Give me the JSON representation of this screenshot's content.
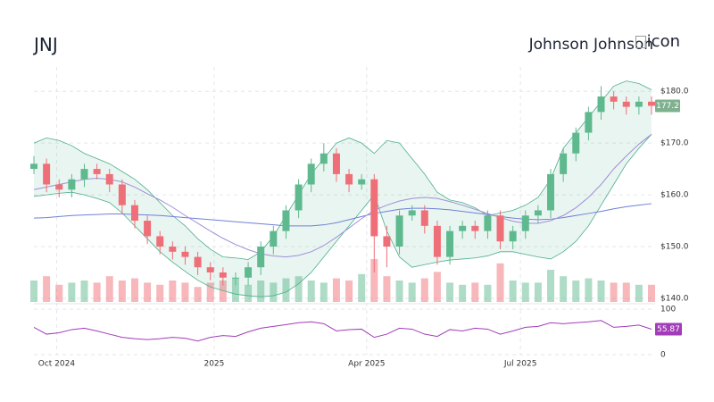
{
  "header": {
    "symbol": "JNJ",
    "company": "Johnson Johnson",
    "logo_alt": "icon"
  },
  "chart_data": {
    "type": "candlestick",
    "xlim": [
      0,
      49
    ],
    "xticks": [
      {
        "value": 1.8,
        "label": "Oct 2024"
      },
      {
        "value": 14.3,
        "label": "2025"
      },
      {
        "value": 26.4,
        "label": "Apr 2025"
      },
      {
        "value": 38.6,
        "label": "Jul 2025"
      }
    ],
    "ylim": [
      139.3,
      184.7
    ],
    "yticks": [
      {
        "value": 140,
        "label": "$140.0"
      },
      {
        "value": 150,
        "label": "$150.0"
      },
      {
        "value": 160,
        "label": "$160.0"
      },
      {
        "value": 170,
        "label": "$170.0"
      },
      {
        "value": 180,
        "label": "$180.0"
      }
    ],
    "grid": true,
    "up_color": "#5fb98f",
    "down_color": "#ef6f78",
    "ohlc": {
      "open": [
        165,
        166,
        162,
        161,
        163,
        165,
        164,
        162,
        158,
        155,
        152,
        150,
        149,
        148,
        146,
        145,
        144,
        144,
        146,
        150,
        153,
        157,
        162,
        166,
        168,
        164,
        162,
        163,
        152,
        150,
        156,
        157,
        154,
        148,
        153,
        154,
        153,
        156,
        151,
        153,
        156,
        157,
        164,
        168,
        172,
        176,
        179,
        178,
        177,
        178
      ],
      "high": [
        167.5,
        167,
        163,
        164,
        166,
        166,
        165,
        163,
        159,
        156,
        153,
        151,
        150,
        149,
        147,
        146,
        145,
        147,
        151,
        154,
        158,
        163,
        167,
        170,
        169,
        165,
        164,
        164,
        154,
        157,
        158,
        158,
        155,
        154,
        155,
        155,
        157,
        157,
        154,
        157,
        158,
        165,
        169,
        173,
        177,
        181,
        180,
        179,
        179,
        179
      ],
      "low": [
        164,
        160.5,
        159.5,
        159.5,
        161.5,
        163,
        160.5,
        156.5,
        153.5,
        150.5,
        148.5,
        147.5,
        146.5,
        144.5,
        143.5,
        142.5,
        142.5,
        142.5,
        144.5,
        148.5,
        151.5,
        155.5,
        160.5,
        164.5,
        162.5,
        160.5,
        161,
        145,
        146,
        148.5,
        155,
        152.5,
        146.5,
        146.5,
        151.5,
        151.5,
        151.5,
        149.5,
        149.5,
        151.5,
        154.5,
        155.5,
        162.5,
        166.5,
        170.5,
        174.5,
        176.5,
        175.5,
        175.5,
        175.5
      ],
      "close": [
        166,
        162,
        161,
        163,
        165,
        164,
        162,
        158,
        155,
        152,
        150,
        149,
        148,
        146,
        145,
        144,
        144,
        146,
        150,
        153,
        157,
        162,
        166,
        168,
        164,
        162,
        163,
        152,
        150,
        156,
        157,
        154,
        148,
        153,
        154,
        153,
        156,
        151,
        153,
        156,
        157,
        164,
        168,
        172,
        176,
        179,
        178,
        177,
        178,
        177.2
      ]
    },
    "bollinger": {
      "color": "#4caf8a",
      "upper": [
        170,
        171,
        170.5,
        169.5,
        168,
        167,
        166,
        164.5,
        163,
        161,
        158.5,
        156,
        154,
        151.5,
        149.5,
        148,
        147.8,
        147.5,
        149,
        152,
        156,
        160,
        164,
        167,
        170,
        171,
        170,
        168,
        170.5,
        170,
        167,
        164,
        160.5,
        159,
        158.5,
        157.5,
        156,
        156.5,
        157,
        158,
        159.5,
        163,
        169,
        172,
        175,
        178,
        181,
        182,
        181.5,
        180.3
      ],
      "lower": [
        159.7,
        160,
        160.3,
        160.5,
        160,
        159.3,
        158.5,
        156.5,
        154,
        151.5,
        149,
        147,
        145.2,
        143.5,
        142.2,
        141.5,
        140.8,
        140.5,
        140.3,
        140.5,
        141.2,
        142.8,
        145,
        148,
        151,
        154,
        157,
        160,
        153,
        148,
        146,
        146.5,
        147,
        147.4,
        147.6,
        147.8,
        148.2,
        149,
        149,
        148.5,
        148,
        147.6,
        149,
        151,
        154,
        158,
        162,
        166,
        169,
        171.7
      ]
    },
    "moving_averages": [
      {
        "color": "#6f80d8",
        "values": [
          155.5,
          155.6,
          155.8,
          156,
          156.1,
          156.2,
          156.3,
          156.3,
          156.2,
          156.1,
          156,
          155.8,
          155.6,
          155.4,
          155.2,
          155,
          154.8,
          154.6,
          154.4,
          154.2,
          154,
          154,
          154,
          154.2,
          154.6,
          155.2,
          155.8,
          156.4,
          156.8,
          157.2,
          157.4,
          157.4,
          157.3,
          157.1,
          156.8,
          156.5,
          156.2,
          155.8,
          155.5,
          155.3,
          155.2,
          155.3,
          155.6,
          156,
          156.4,
          156.8,
          157.3,
          157.7,
          158,
          158.3
        ]
      },
      {
        "color": "#a08fd6",
        "values": [
          161,
          161.5,
          162,
          162.5,
          163,
          163.2,
          163,
          162.5,
          161.5,
          160.2,
          159,
          157.6,
          156,
          154.5,
          153,
          151.6,
          150.4,
          149.4,
          148.6,
          148.2,
          148,
          148.3,
          149,
          150.2,
          151.8,
          153.6,
          155.4,
          157,
          158,
          158.8,
          159.3,
          159.5,
          159.3,
          158.7,
          158,
          157.2,
          156.4,
          155.6,
          154.9,
          154.5,
          154.5,
          155,
          156,
          157.5,
          159.5,
          162,
          165,
          167.5,
          169.8,
          171.7
        ]
      }
    ],
    "price_label_color": "#7fb08f",
    "volume": {
      "values": [
        10,
        12,
        8,
        9,
        10,
        9,
        12,
        10,
        11,
        9,
        8,
        10,
        9,
        7,
        9,
        10,
        11,
        8,
        10,
        9,
        11,
        12,
        10,
        9,
        11,
        10,
        13,
        20,
        12,
        10,
        9,
        11,
        14,
        9,
        8,
        9,
        8,
        18,
        10,
        9,
        9,
        15,
        12,
        10,
        11,
        10,
        9,
        9,
        8,
        8
      ]
    },
    "rsi": {
      "color": "#a23cb8",
      "ylim": [
        0,
        100
      ],
      "yticks": [
        0,
        100
      ],
      "values": [
        60,
        45,
        48,
        55,
        58,
        52,
        45,
        38,
        35,
        33,
        35,
        38,
        36,
        30,
        38,
        42,
        40,
        50,
        58,
        62,
        66,
        70,
        72,
        68,
        52,
        55,
        56,
        38,
        45,
        58,
        56,
        45,
        40,
        55,
        52,
        58,
        56,
        45,
        52,
        60,
        62,
        70,
        68,
        70,
        72,
        75,
        60,
        62,
        65,
        55.87
      ]
    }
  }
}
